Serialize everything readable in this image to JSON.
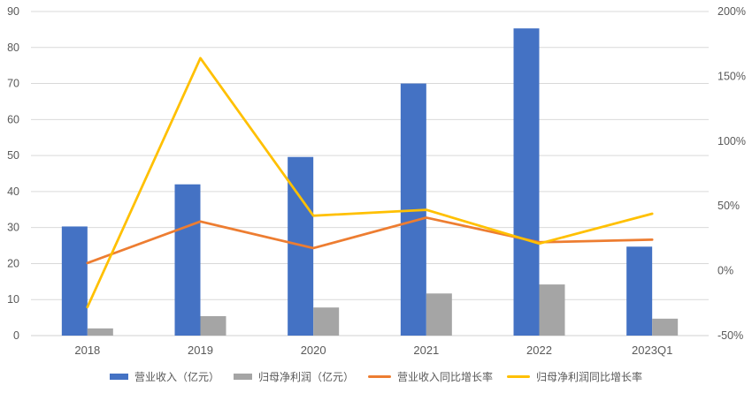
{
  "chart_data": {
    "type": "bar+line",
    "title": "",
    "categories": [
      "2018",
      "2019",
      "2020",
      "2021",
      "2022",
      "2023Q1"
    ],
    "series": [
      {
        "name": "营业收入（亿元）",
        "type": "bar",
        "axis": "left",
        "color": "#4472C4",
        "values": [
          30.3,
          42,
          49.6,
          70,
          85.3,
          24.7
        ]
      },
      {
        "name": "归母净利润（亿元）",
        "type": "bar",
        "axis": "left",
        "color": "#A5A5A5",
        "values": [
          2,
          5.4,
          7.8,
          11.7,
          14.2,
          4.7
        ]
      },
      {
        "name": "营业收入同比增长率",
        "type": "line",
        "axis": "right",
        "color": "#ED7D31",
        "unit": "%",
        "values": [
          6,
          38,
          17.5,
          41,
          22,
          24
        ]
      },
      {
        "name": "归母净利润同比增长率",
        "type": "line",
        "axis": "right",
        "color": "#FFC000",
        "unit": "%",
        "values": [
          -28,
          164,
          42.5,
          47,
          21,
          44
        ]
      }
    ],
    "left_axis": {
      "min": 0,
      "max": 90,
      "tick_values": [
        0,
        10,
        20,
        30,
        40,
        50,
        60,
        70,
        80,
        90
      ],
      "tick_labels": [
        "0",
        "10",
        "20",
        "30",
        "40",
        "50",
        "60",
        "70",
        "80",
        "90"
      ]
    },
    "right_axis": {
      "min": -50,
      "max": 200,
      "tick_values": [
        -50,
        0,
        50,
        100,
        150,
        200
      ],
      "tick_labels": [
        "-50%",
        "0%",
        "50%",
        "100%",
        "150%",
        "200%"
      ]
    },
    "grid": true,
    "legend_position": "bottom"
  },
  "style": {
    "background": "#FFFFFF",
    "gridline_color": "#D9D9D9",
    "axis_line_color": "#D0D0D0",
    "axis_text_color": "#595959"
  }
}
